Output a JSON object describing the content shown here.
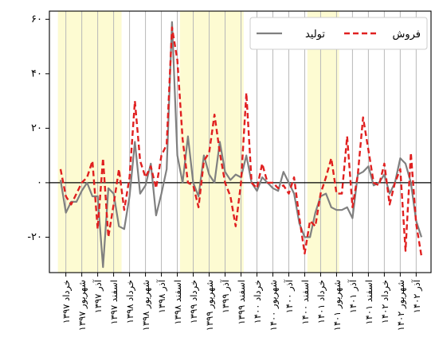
{
  "chart_data": {
    "type": "line",
    "title": "",
    "xlabel": "",
    "ylabel": "",
    "ylim": [
      -33,
      63
    ],
    "yticks": [
      {
        "value": 60,
        "label": "۶۰"
      },
      {
        "value": 40,
        "label": "۴۰"
      },
      {
        "value": 20,
        "label": "۲۰"
      },
      {
        "value": 0,
        "label": "۰"
      },
      {
        "value": -20,
        "label": "-۲۰"
      }
    ],
    "xtick_labels": [
      "خرداد ۱۳۹۷",
      "شهریور ۱۳۹۷",
      "آذر ۱۳۹۷",
      "اسفند ۱۳۹۷",
      "خرداد ۱۳۹۸",
      "شهریور ۱۳۹۸",
      "آذر ۱۳۹۸",
      "اسفند ۱۳۹۸",
      "خرداد ۱۳۹۹",
      "شهریور ۱۳۹۹",
      "آذر ۱۳۹۹",
      "اسفند ۱۳۹۹",
      "خرداد ۱۴۰۰",
      "شهریور ۱۴۰۰",
      "آذر ۱۴۰۰",
      "اسفند ۱۴۰۰",
      "خرداد ۱۴۰۱",
      "شهریور ۱۴۰۱",
      "آذر ۱۴۰۱",
      "اسفند ۱۴۰۱",
      "خرداد ۱۴۰۲",
      "شهریور ۱۴۰۲",
      "آذر ۱۴۰۲"
    ],
    "shaded_ranges": [
      [
        0,
        12
      ],
      [
        23,
        35
      ],
      [
        47,
        53
      ]
    ],
    "grid": "vertical lines at quarterly ticks",
    "zero_line": true,
    "legend": {
      "placement": "top-right"
    },
    "series": [
      {
        "name": "تولید",
        "color": "#808080",
        "style": "solid",
        "values": [
          1,
          -11,
          -7,
          -7,
          -3,
          0,
          -5,
          -5,
          -31,
          -2,
          -4,
          -16,
          -17,
          -5,
          15,
          -4,
          -1,
          7,
          -12,
          -4,
          5,
          59,
          10,
          0,
          17,
          0,
          -5,
          10,
          3,
          0,
          15,
          4,
          1,
          3,
          2,
          10,
          0,
          -3,
          2,
          0,
          -2,
          -3,
          4,
          0,
          -4,
          -15,
          -20,
          -20,
          -11,
          -5,
          -4,
          -9,
          -10,
          -10,
          -9,
          -13,
          3,
          4,
          6,
          -1,
          0,
          3,
          -4,
          0,
          9,
          7,
          0,
          -14,
          -20
        ]
      },
      {
        "name": "فروش",
        "color": "#e02020",
        "style": "dashed",
        "values": [
          5,
          -5,
          -8,
          -4,
          0,
          2,
          8,
          -17,
          9,
          -20,
          -8,
          5,
          -10,
          2,
          30,
          8,
          2,
          6,
          -2,
          10,
          14,
          57,
          45,
          16,
          0,
          -1,
          -9,
          8,
          11,
          25,
          11,
          0,
          -5,
          -16,
          0,
          33,
          0,
          -2,
          7,
          0,
          0,
          -2,
          -1,
          -4,
          2,
          -13,
          -26,
          -14,
          -16,
          -4,
          2,
          9,
          -4,
          -4,
          17,
          -9,
          3,
          24,
          12,
          0,
          -1,
          7,
          -8,
          0,
          5,
          -25,
          11,
          -15,
          -27
        ]
      }
    ]
  }
}
